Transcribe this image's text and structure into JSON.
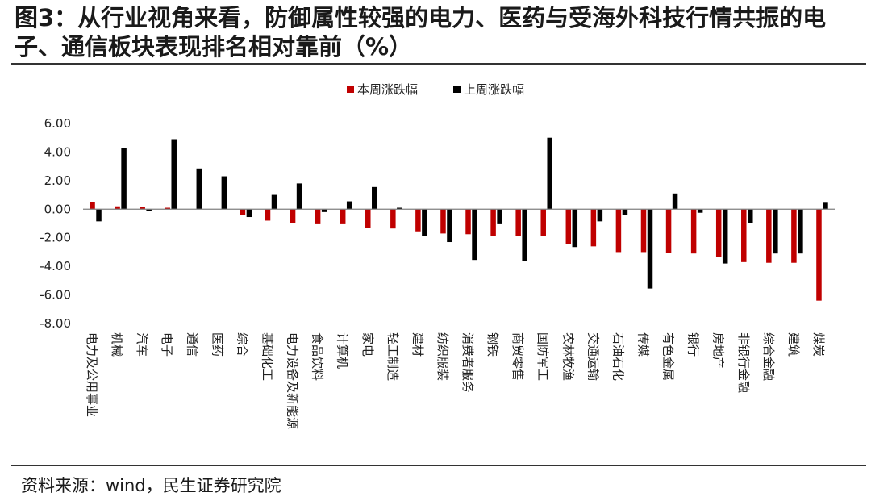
{
  "title": "图3：从行业视角来看，防御属性较强的电力、医药与受海外科技行情共振的电子、通信板块表现排名相对靠前（%）",
  "source": "资料来源：wind，民生证券研究院",
  "colors": {
    "this_week": "#c00000",
    "last_week": "#000000",
    "axis": "#808080"
  },
  "chart_data": {
    "type": "bar",
    "ylim": [
      -8,
      6
    ],
    "yticks": [
      "6.00",
      "4.00",
      "2.00",
      "0.00",
      "-2.00",
      "-4.00",
      "-6.00",
      "-8.00"
    ],
    "legend_position": "top",
    "grid": false,
    "categories": [
      "电力及公用事业",
      "机械",
      "汽车",
      "电子",
      "通信",
      "医药",
      "综合",
      "基础化工",
      "电力设备及新能源",
      "食品饮料",
      "计算机",
      "家电",
      "轻工制造",
      "建材",
      "纺织服装",
      "消费者服务",
      "钢铁",
      "商贸零售",
      "国防军工",
      "农林牧渔",
      "交通运输",
      "石油石化",
      "传媒",
      "有色金属",
      "银行",
      "房地产",
      "非银行金融",
      "综合金融",
      "建筑",
      "煤炭"
    ],
    "series": [
      {
        "name": "本周涨跌幅",
        "values": [
          0.5,
          0.2,
          0.15,
          0.1,
          0.0,
          0.0,
          -0.4,
          -0.8,
          -1.0,
          -1.05,
          -1.05,
          -1.3,
          -1.35,
          -1.55,
          -1.7,
          -1.75,
          -1.85,
          -1.9,
          -1.9,
          -2.45,
          -2.6,
          -3.0,
          -3.0,
          -3.05,
          -3.1,
          -3.35,
          -3.7,
          -3.75,
          -3.75,
          -6.4
        ]
      },
      {
        "name": "上周涨跌幅",
        "values": [
          -0.85,
          4.25,
          -0.15,
          4.9,
          2.85,
          2.3,
          -0.55,
          1.0,
          1.8,
          -0.2,
          0.55,
          1.55,
          0.1,
          -1.85,
          -2.3,
          -3.55,
          -1.05,
          -3.6,
          5.0,
          -2.65,
          -0.85,
          -0.4,
          -5.55,
          1.1,
          -0.25,
          -3.8,
          -1.0,
          -3.1,
          -3.1,
          0.45
        ]
      }
    ]
  }
}
